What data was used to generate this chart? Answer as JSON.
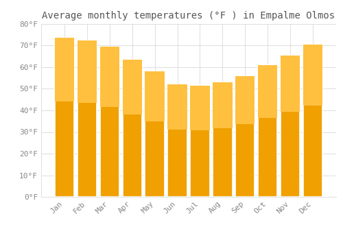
{
  "title": "Average monthly temperatures (°F ) in Empalme Olmos",
  "months": [
    "Jan",
    "Feb",
    "Mar",
    "Apr",
    "May",
    "Jun",
    "Jul",
    "Aug",
    "Sep",
    "Oct",
    "Nov",
    "Dec"
  ],
  "values": [
    73.5,
    72.5,
    69.5,
    63.5,
    58.0,
    52.0,
    51.5,
    53.0,
    56.0,
    61.0,
    65.5,
    70.5
  ],
  "bar_color_top": "#FFC040",
  "bar_color_bottom": "#F0A000",
  "bar_edge_color": "#FFFFFF",
  "background_color": "#FFFFFF",
  "plot_bg_color": "#FFFFFF",
  "grid_color": "#DDDDDD",
  "ylim": [
    0,
    80
  ],
  "yticks": [
    0,
    10,
    20,
    30,
    40,
    50,
    60,
    70,
    80
  ],
  "title_fontsize": 10,
  "tick_fontsize": 8,
  "tick_label_color": "#888888",
  "title_color": "#555555",
  "font_family": "monospace"
}
